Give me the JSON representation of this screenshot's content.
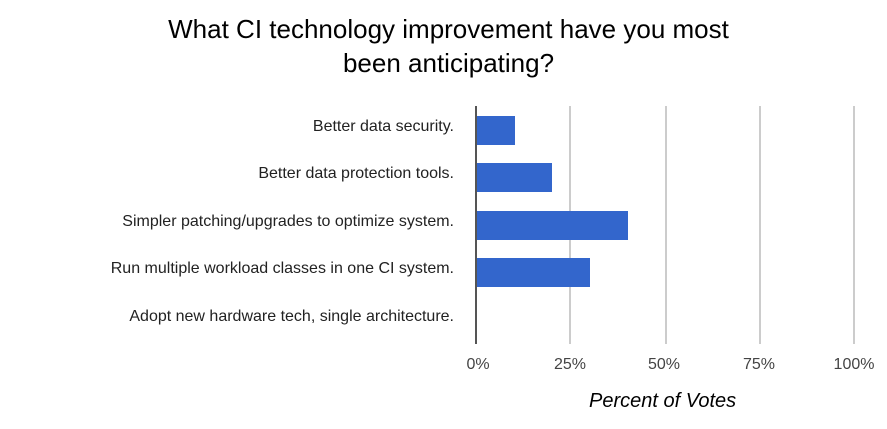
{
  "chart_data": {
    "type": "bar",
    "orientation": "horizontal",
    "title": "What CI technology improvement have you most been anticipating?",
    "title_lines": [
      "What CI technology improvement have you most",
      "been anticipating?"
    ],
    "categories": [
      "Better data security.",
      "Better data protection tools.",
      "Simpler patching/upgrades to optimize system.",
      "Run multiple workload classes in one CI system.",
      "Adopt new hardware tech, single architecture."
    ],
    "values": [
      10,
      20,
      40,
      30,
      0
    ],
    "xlabel": "Percent of Votes",
    "ylabel": "",
    "xlim": [
      0,
      100
    ],
    "x_ticks": [
      "0%",
      "25%",
      "50%",
      "75%",
      "100%"
    ],
    "grid": true,
    "legend": "none",
    "bar_color": "#3366cc"
  }
}
